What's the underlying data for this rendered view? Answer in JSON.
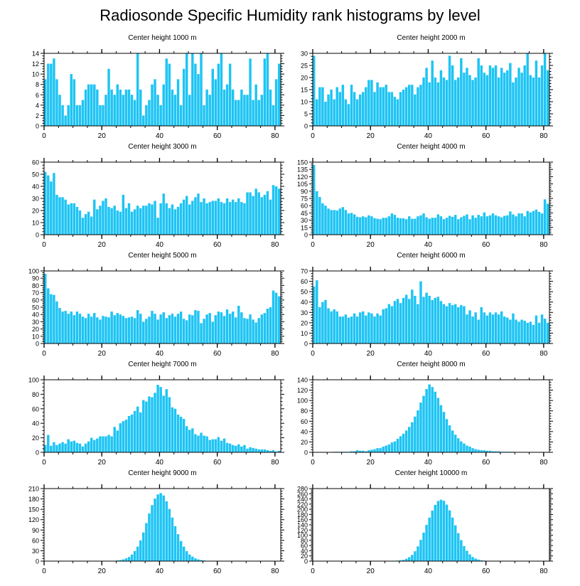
{
  "title": "Radiosonde Specific Humidity rank histograms by level",
  "colors": {
    "bar": "#1ec4f4",
    "axis": "#000000"
  },
  "chart_data": [
    {
      "type": "bar",
      "title": "Center height 1000 m",
      "xlabel": "",
      "ylabel": "",
      "xlim": [
        0,
        82
      ],
      "xticks": [
        0,
        20,
        40,
        60,
        80
      ],
      "ylim": [
        0,
        14
      ],
      "yticks": [
        0,
        2,
        4,
        6,
        8,
        10,
        12,
        14
      ],
      "x_start": 0,
      "values": [
        9,
        12,
        12,
        13,
        9,
        6,
        4,
        2,
        4,
        10,
        9,
        4,
        4,
        5,
        7,
        8,
        8,
        8,
        7,
        4,
        4,
        6,
        11,
        7,
        6,
        8,
        7,
        6,
        7,
        7,
        6,
        5,
        14,
        7,
        2,
        4,
        5,
        8,
        9,
        6,
        4,
        8,
        13,
        12,
        7,
        6,
        9,
        4,
        11,
        14,
        6,
        14,
        12,
        10,
        14,
        4,
        7,
        6,
        11,
        9,
        12,
        14,
        7,
        8,
        12,
        7,
        5,
        5,
        7,
        6,
        6,
        13,
        5,
        8,
        5,
        6,
        13,
        14,
        7,
        4,
        9,
        12
      ]
    },
    {
      "type": "bar",
      "title": "Center height 2000 m",
      "xlabel": "",
      "ylabel": "",
      "xlim": [
        0,
        82
      ],
      "xticks": [
        0,
        20,
        40,
        60,
        80
      ],
      "ylim": [
        0,
        30
      ],
      "yticks": [
        0,
        5,
        10,
        15,
        20,
        25,
        30
      ],
      "x_start": 0,
      "values": [
        29,
        11,
        16,
        16,
        10,
        13,
        15,
        11,
        16,
        14,
        17,
        11,
        9,
        17,
        14,
        11,
        13,
        14,
        16,
        19,
        19,
        14,
        18,
        16,
        16,
        17,
        14,
        14,
        12,
        11,
        14,
        15,
        16,
        17,
        17,
        13,
        16,
        17,
        20,
        24,
        18,
        27,
        20,
        18,
        23,
        20,
        19,
        29,
        25,
        19,
        20,
        28,
        22,
        24,
        21,
        19,
        20,
        28,
        25,
        22,
        21,
        25,
        24,
        25,
        20,
        24,
        22,
        23,
        26,
        18,
        20,
        24,
        22,
        25,
        30,
        21,
        20,
        27,
        20,
        25,
        30,
        23
      ]
    },
    {
      "type": "bar",
      "title": "Center height 3000 m",
      "xlabel": "",
      "ylabel": "",
      "xlim": [
        0,
        82
      ],
      "xticks": [
        0,
        20,
        40,
        60,
        80
      ],
      "ylim": [
        0,
        60
      ],
      "yticks": [
        0,
        10,
        20,
        30,
        40,
        50,
        60
      ],
      "x_start": 0,
      "values": [
        52,
        49,
        44,
        51,
        33,
        31,
        31,
        29,
        25,
        26,
        26,
        23,
        20,
        14,
        17,
        19,
        15,
        29,
        21,
        24,
        28,
        30,
        23,
        22,
        24,
        20,
        19,
        33,
        22,
        26,
        19,
        21,
        24,
        22,
        24,
        24,
        26,
        25,
        28,
        14,
        26,
        34,
        26,
        22,
        25,
        21,
        23,
        26,
        29,
        32,
        25,
        28,
        31,
        34,
        27,
        30,
        26,
        27,
        28,
        28,
        30,
        27,
        26,
        30,
        27,
        29,
        27,
        30,
        27,
        26,
        35,
        35,
        32,
        38,
        35,
        31,
        33,
        36,
        29,
        41,
        40,
        38
      ]
    },
    {
      "type": "bar",
      "title": "Center height 4000 m",
      "xlabel": "",
      "ylabel": "",
      "xlim": [
        0,
        82
      ],
      "xticks": [
        0,
        20,
        40,
        60,
        80
      ],
      "ylim": [
        0,
        150
      ],
      "yticks": [
        0,
        15,
        30,
        45,
        60,
        75,
        90,
        105,
        120,
        135,
        150
      ],
      "x_start": 0,
      "values": [
        144,
        90,
        78,
        65,
        60,
        54,
        51,
        51,
        50,
        54,
        57,
        51,
        44,
        45,
        42,
        37,
        36,
        38,
        36,
        40,
        38,
        34,
        33,
        32,
        35,
        35,
        38,
        44,
        41,
        35,
        34,
        34,
        32,
        38,
        33,
        33,
        38,
        40,
        44,
        36,
        33,
        35,
        35,
        42,
        38,
        32,
        35,
        39,
        37,
        41,
        32,
        36,
        39,
        42,
        32,
        40,
        35,
        41,
        38,
        46,
        38,
        40,
        44,
        40,
        38,
        36,
        39,
        40,
        48,
        42,
        38,
        44,
        44,
        38,
        49,
        46,
        49,
        52,
        47,
        44,
        73,
        64
      ]
    },
    {
      "type": "bar",
      "title": "Center height 5000 m",
      "xlabel": "",
      "ylabel": "",
      "xlim": [
        0,
        82
      ],
      "xticks": [
        0,
        20,
        40,
        60,
        80
      ],
      "ylim": [
        0,
        100
      ],
      "yticks": [
        0,
        10,
        20,
        30,
        40,
        50,
        60,
        70,
        80,
        90,
        100
      ],
      "x_start": 0,
      "values": [
        96,
        76,
        68,
        67,
        58,
        49,
        44,
        45,
        41,
        44,
        39,
        44,
        41,
        37,
        35,
        41,
        37,
        42,
        36,
        33,
        38,
        37,
        36,
        44,
        39,
        42,
        40,
        38,
        35,
        36,
        37,
        35,
        46,
        41,
        30,
        34,
        37,
        45,
        41,
        33,
        40,
        43,
        35,
        39,
        41,
        37,
        41,
        44,
        34,
        32,
        40,
        39,
        46,
        45,
        28,
        34,
        40,
        42,
        30,
        39,
        44,
        43,
        38,
        47,
        41,
        44,
        36,
        52,
        43,
        35,
        34,
        40,
        33,
        29,
        35,
        40,
        42,
        48,
        50,
        73,
        70,
        65
      ]
    },
    {
      "type": "bar",
      "title": "Center height 6000 m",
      "xlabel": "",
      "ylabel": "",
      "xlim": [
        0,
        82
      ],
      "xticks": [
        0,
        20,
        40,
        60,
        80
      ],
      "ylim": [
        0,
        70
      ],
      "yticks": [
        0,
        10,
        20,
        30,
        40,
        50,
        60,
        70
      ],
      "x_start": 0,
      "values": [
        55,
        61,
        35,
        40,
        42,
        34,
        31,
        33,
        31,
        26,
        26,
        28,
        25,
        26,
        29,
        26,
        30,
        31,
        27,
        30,
        29,
        26,
        29,
        27,
        33,
        34,
        38,
        36,
        41,
        43,
        39,
        44,
        47,
        43,
        52,
        46,
        38,
        60,
        45,
        49,
        46,
        42,
        44,
        45,
        41,
        38,
        36,
        39,
        37,
        38,
        35,
        37,
        36,
        28,
        32,
        26,
        30,
        23,
        35,
        30,
        27,
        30,
        28,
        30,
        28,
        31,
        26,
        25,
        23,
        29,
        23,
        21,
        23,
        22,
        20,
        21,
        18,
        27,
        20,
        28,
        24,
        20
      ]
    },
    {
      "type": "bar",
      "title": "Center height 7000 m",
      "xlabel": "",
      "ylabel": "",
      "xlim": [
        0,
        82
      ],
      "xticks": [
        0,
        20,
        40,
        60,
        80
      ],
      "ylim": [
        0,
        100
      ],
      "yticks": [
        0,
        20,
        40,
        60,
        80,
        100
      ],
      "x_start": 0,
      "values": [
        10,
        24,
        9,
        14,
        10,
        12,
        14,
        12,
        18,
        15,
        16,
        13,
        12,
        8,
        12,
        15,
        20,
        17,
        19,
        22,
        22,
        22,
        24,
        22,
        35,
        30,
        40,
        43,
        45,
        50,
        52,
        57,
        63,
        55,
        72,
        70,
        77,
        76,
        82,
        93,
        90,
        78,
        87,
        76,
        62,
        60,
        52,
        49,
        46,
        36,
        31,
        33,
        25,
        23,
        27,
        23,
        22,
        17,
        18,
        18,
        21,
        16,
        19,
        13,
        12,
        10,
        9,
        11,
        8,
        10,
        5,
        7,
        6,
        5,
        4,
        4,
        4,
        3,
        2,
        3,
        1,
        2
      ]
    },
    {
      "type": "bar",
      "title": "Center height 8000 m",
      "xlabel": "",
      "ylabel": "",
      "xlim": [
        0,
        82
      ],
      "xticks": [
        0,
        20,
        40,
        60,
        80
      ],
      "ylim": [
        0,
        140
      ],
      "yticks": [
        0,
        20,
        40,
        60,
        80,
        100,
        120,
        140
      ],
      "x_start": 0,
      "values": [
        0,
        0,
        0,
        0,
        0,
        0,
        0,
        1,
        1,
        1,
        1,
        1,
        1,
        2,
        2,
        4,
        3,
        3,
        2,
        4,
        5,
        6,
        8,
        8,
        11,
        13,
        15,
        19,
        21,
        26,
        31,
        36,
        42,
        49,
        58,
        69,
        81,
        96,
        109,
        122,
        131,
        126,
        117,
        105,
        91,
        78,
        64,
        52,
        42,
        34,
        27,
        21,
        17,
        13,
        11,
        8,
        6,
        5,
        4,
        4,
        3,
        3,
        2,
        2,
        2,
        1,
        1,
        1,
        1,
        1,
        0,
        0,
        0,
        0,
        0,
        0,
        0,
        0,
        0,
        0,
        0,
        0
      ]
    },
    {
      "type": "bar",
      "title": "Center height 9000 m",
      "xlabel": "",
      "ylabel": "",
      "xlim": [
        0,
        82
      ],
      "xticks": [
        0,
        20,
        40,
        60,
        80
      ],
      "ylim": [
        0,
        210
      ],
      "yticks": [
        0,
        30,
        60,
        90,
        120,
        150,
        180,
        210
      ],
      "x_start": 0,
      "values": [
        0,
        0,
        0,
        0,
        0,
        0,
        0,
        0,
        0,
        0,
        0,
        0,
        0,
        0,
        0,
        0,
        0,
        0,
        0,
        0,
        0,
        0,
        0,
        1,
        1,
        2,
        3,
        5,
        8,
        12,
        19,
        29,
        42,
        60,
        83,
        110,
        138,
        162,
        181,
        193,
        197,
        190,
        173,
        151,
        126,
        101,
        78,
        58,
        42,
        29,
        19,
        13,
        8,
        5,
        3,
        2,
        1,
        1,
        1,
        0,
        0,
        0,
        0,
        0,
        0,
        0,
        0,
        0,
        0,
        0,
        0,
        0,
        0,
        0,
        0,
        0,
        0,
        0,
        0,
        0,
        0,
        0
      ]
    },
    {
      "type": "bar",
      "title": "Center height 10000 m",
      "xlabel": "",
      "ylabel": "",
      "xlim": [
        0,
        82
      ],
      "xticks": [
        0,
        20,
        40,
        60,
        80
      ],
      "ylim": [
        0,
        280
      ],
      "yticks": [
        0,
        20,
        40,
        60,
        80,
        100,
        120,
        140,
        160,
        180,
        200,
        220,
        240,
        260,
        280
      ],
      "x_start": 0,
      "values": [
        0,
        0,
        0,
        0,
        0,
        0,
        0,
        0,
        0,
        0,
        0,
        0,
        0,
        0,
        0,
        0,
        0,
        0,
        0,
        0,
        0,
        0,
        0,
        0,
        0,
        0,
        0,
        0,
        1,
        2,
        3,
        5,
        9,
        15,
        24,
        38,
        57,
        82,
        110,
        140,
        168,
        195,
        217,
        232,
        237,
        233,
        218,
        196,
        168,
        138,
        108,
        81,
        58,
        40,
        26,
        16,
        10,
        6,
        3,
        2,
        1,
        1,
        0,
        0,
        0,
        0,
        0,
        0,
        0,
        0,
        0,
        0,
        0,
        0,
        0,
        0,
        0,
        0,
        0,
        0,
        0,
        0
      ]
    }
  ]
}
